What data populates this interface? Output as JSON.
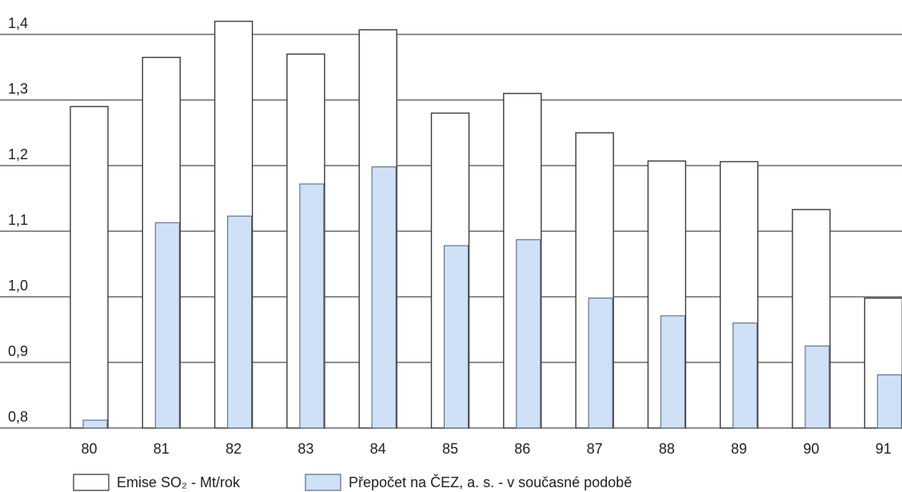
{
  "chart_data": {
    "type": "bar",
    "categories": [
      "80",
      "81",
      "82",
      "83",
      "84",
      "85",
      "86",
      "87",
      "88",
      "89",
      "90",
      "91"
    ],
    "series": [
      {
        "name": "Emise SO₂ - Mt/rok",
        "values": [
          1.29,
          1.365,
          1.42,
          1.37,
          1.407,
          1.28,
          1.31,
          1.25,
          1.207,
          1.206,
          1.133,
          0.998
        ],
        "fill": "#ffffff",
        "stroke": "#3a3a3a"
      },
      {
        "name": "Přepočet na ČEZ, a. s. - v současné podobě",
        "values": [
          0.812,
          1.113,
          1.123,
          1.172,
          1.198,
          1.078,
          1.087,
          0.998,
          0.971,
          0.96,
          0.925,
          0.881
        ],
        "fill": "#cfe0f7",
        "stroke": "#5a6a80"
      }
    ],
    "yticks": [
      "1,4",
      "1,3",
      "1,2",
      "1,1",
      "1,0",
      "0,9",
      "0,8"
    ],
    "ytick_values": [
      1.4,
      1.3,
      1.2,
      1.1,
      1.0,
      0.9,
      0.8
    ],
    "ylim": [
      0.8,
      1.4
    ],
    "grid": true,
    "legend_position": "bottom-left",
    "title": "",
    "xlabel": "",
    "ylabel": ""
  }
}
